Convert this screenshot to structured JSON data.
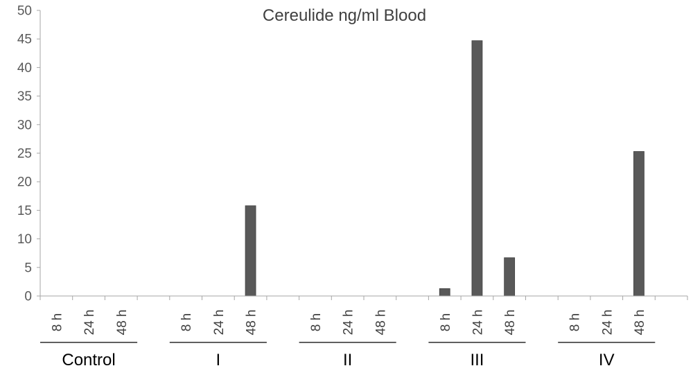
{
  "chart_data": {
    "type": "bar",
    "title": "Cereulide ng/ml Blood",
    "ylim": [
      0,
      50
    ],
    "yticks": [
      0,
      5,
      10,
      15,
      20,
      25,
      30,
      35,
      40,
      45,
      50
    ],
    "grid": false,
    "legend": "none",
    "bar_color": "#595959",
    "groups": [
      {
        "name": "Control",
        "categories": [
          "8 h",
          "24 h",
          "48 h"
        ],
        "values": [
          0,
          0,
          0
        ]
      },
      {
        "name": "I",
        "categories": [
          "8 h",
          "24 h",
          "48 h"
        ],
        "values": [
          0,
          0,
          15.8
        ]
      },
      {
        "name": "II",
        "categories": [
          "8 h",
          "24 h",
          "48 h"
        ],
        "values": [
          0,
          0,
          0
        ]
      },
      {
        "name": "III",
        "categories": [
          "8 h",
          "24 h",
          "48 h"
        ],
        "values": [
          1.3,
          44.7,
          6.7
        ]
      },
      {
        "name": "IV",
        "categories": [
          "8 h",
          "24 h",
          "48 h"
        ],
        "values": [
          0,
          0,
          25.3
        ]
      }
    ]
  }
}
